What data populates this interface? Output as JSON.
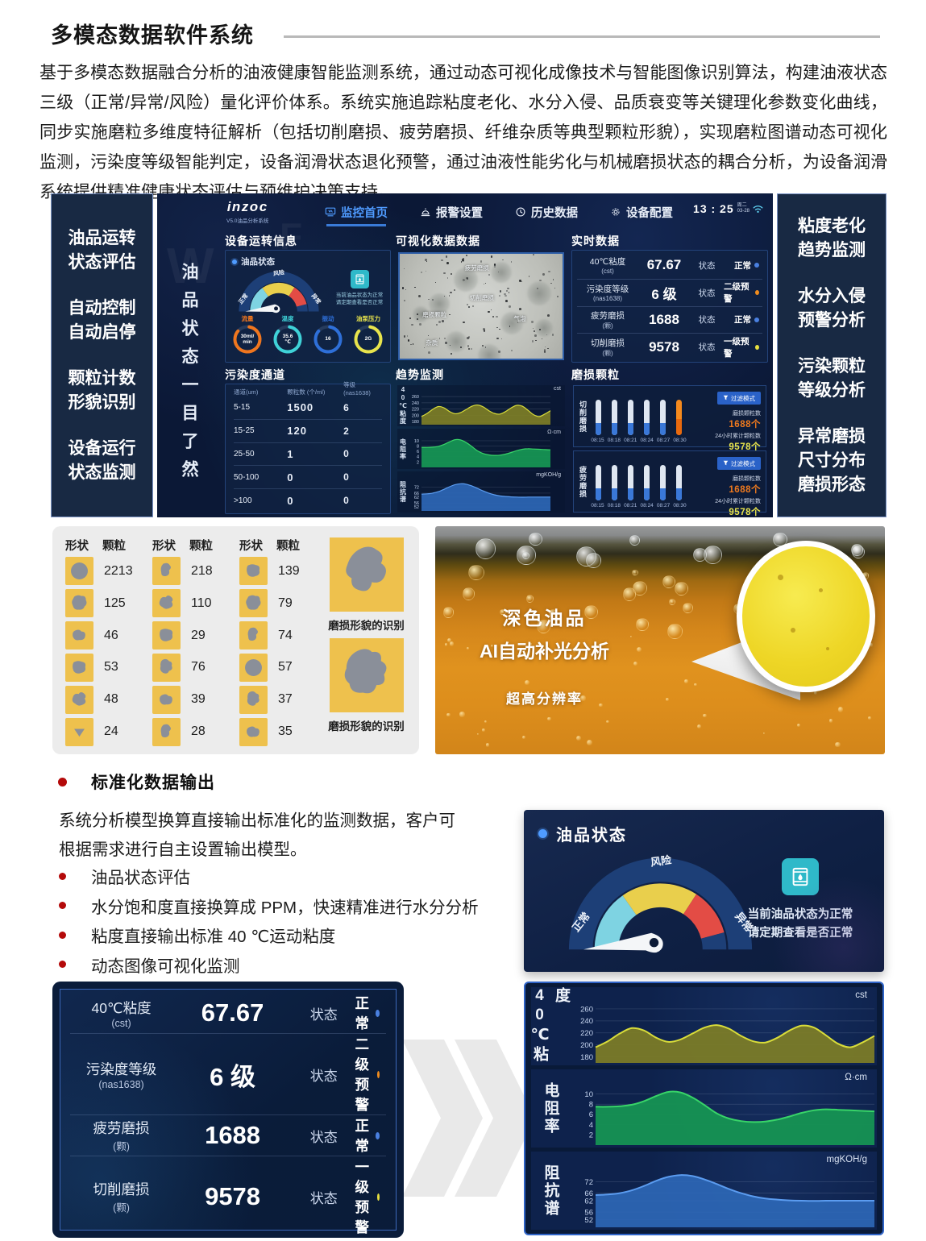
{
  "page": {
    "title": "多模态数据软件系统",
    "intro": "基于多模态数据融合分析的油液健康智能监测系统，通过动态可视化成像技术与智能图像识别算法，构建油液状态三级（正常/异常/风险）量化评价体系。系统实施追踪粘度老化、水分入侵、品质衰变等关键理化参数变化曲线，同步实施磨粒多维度特征解析（包括切削磨损、疲劳磨损、纤维杂质等典型颗粒形貌），实现磨粒图谱动态可视化监测，污染度等级智能判定，设备润滑状态退化预警，通过油液性能劣化与机械磨损状态的耦合分析，为设备润滑系统提供精准健康状态评估与预维护决策支持。"
  },
  "left_sidebar": {
    "items": [
      "油品运转\n状态评估",
      "自动控制\n自动启停",
      "颗粒计数\n形貌识别",
      "设备运行\n状态监测"
    ]
  },
  "right_sidebar": {
    "items": [
      "粘度老化\n趋势监测",
      "水分入侵\n预警分析",
      "污染颗粒\n等级分析",
      "异常磨损\n尺寸分布\n磨损形态"
    ]
  },
  "dashboard": {
    "logo": {
      "name": "inzoc",
      "tagline": "V5.0油品分析系统"
    },
    "watermarks": [
      "W",
      "F"
    ],
    "nav": [
      {
        "label": "监控首页",
        "active": true
      },
      {
        "label": "报警设置",
        "active": false
      },
      {
        "label": "历史数据",
        "active": false
      },
      {
        "label": "设备配置",
        "active": false
      }
    ],
    "clock": {
      "time": "13 : 25",
      "date": "周二\n03-28"
    },
    "vertical_banner": "油品状态一目了然",
    "device_info": {
      "title": "设备运转信息",
      "oil_status_label": "油品状态",
      "rings": [
        {
          "label": "流量",
          "value": "30ml/\nmin",
          "color": "#f0761e"
        },
        {
          "label": "温度",
          "value": "35.6\n℃",
          "color": "#3fd2d8"
        },
        {
          "label": "振动",
          "value": "16",
          "color": "#2e6fd8"
        },
        {
          "label": "油泵压力",
          "value": "2G",
          "color": "#e8e44c"
        }
      ]
    },
    "visual_data": {
      "title": "可视化数据数据",
      "annotations": [
        "疲劳磨损",
        "切削磨损",
        "磨损颗粒",
        "气泡",
        "杂质"
      ]
    },
    "realtime": {
      "title": "实时数据",
      "status_label": "状态",
      "rows": [
        {
          "label": "40℃粘度",
          "sub": "(cst)",
          "value": "67.67",
          "status": "正常",
          "dot": "#4a80e0"
        },
        {
          "label": "污染度等级",
          "sub": "(nas1638)",
          "value": "6 级",
          "status": "二级预警",
          "dot": "#f08c1e"
        },
        {
          "label": "疲劳磨损",
          "sub": "(颗)",
          "value": "1688",
          "status": "正常",
          "dot": "#4a80e0"
        },
        {
          "label": "切削磨损",
          "sub": "(颗)",
          "value": "9578",
          "status": "一级预警",
          "dot": "#e8e040"
        }
      ]
    },
    "pollution": {
      "title": "污染度通道",
      "headers": [
        "通道(um)",
        "颗粒数 (个/ml)",
        "等级(nas1638)"
      ],
      "rows": [
        [
          "5-15",
          "1500",
          "6"
        ],
        [
          "15-25",
          "120",
          "2"
        ],
        [
          "25-50",
          "1",
          "0"
        ],
        [
          "50-100",
          "0",
          "0"
        ],
        [
          ">100",
          "0",
          "0"
        ]
      ]
    },
    "trend": {
      "title": "趋势监测"
    },
    "wear": {
      "title": "磨损颗粒",
      "groups": [
        {
          "label": "切削磨损",
          "times": [
            "08:15",
            "08:18",
            "08:21",
            "08:24",
            "08:27",
            "08:30"
          ],
          "highlight_last": true,
          "mode_btn": "过滤模式",
          "stat1_label": "磨损颗粒数",
          "stat1": "1688个",
          "stat2_label": "24小时累计颗粒数",
          "stat2": "9578个"
        },
        {
          "label": "疲劳磨损",
          "times": [
            "08:15",
            "08:18",
            "08:21",
            "08:24",
            "08:27",
            "08:30"
          ],
          "highlight_last": false,
          "mode_btn": "过滤模式",
          "stat1_label": "磨损颗粒数",
          "stat1": "1688个",
          "stat2_label": "24小时累计颗粒数",
          "stat2": "9578个"
        }
      ]
    }
  },
  "oil_gauge": {
    "normal": "正常",
    "risk": "风险",
    "abnormal": "异常",
    "note": "当前油品状态为正常\n请定期查看是否正常",
    "colors": {
      "normal": "#7ed3e2",
      "risk": "#e9cf4c",
      "abnormal": "#e34c45",
      "arc": "#1d3f77"
    }
  },
  "particles": {
    "col_headers": {
      "shape": "形状",
      "count": "颗粒"
    },
    "columns": [
      [
        "2213",
        "125",
        "46",
        "53",
        "48",
        "24"
      ],
      [
        "218",
        "110",
        "29",
        "76",
        "39",
        "28"
      ],
      [
        "139",
        "79",
        "74",
        "57",
        "37",
        "35"
      ]
    ],
    "recognition_label": "磨损形貌的识别"
  },
  "oil_photo": {
    "line1": "深色油品",
    "line2": "AI自动补光分析",
    "line3": "超高分辨率"
  },
  "std_output": {
    "heading": "标准化数据输出",
    "body": "系统分析模型换算直接输出标准化的监测数据，客户可\n根据需求进行自主设置输出模型。",
    "bullets": [
      "油品状态评估",
      "水分饱和度直接换算成 PPM，快速精准进行水分分析",
      "粘度直接输出标准 40 ℃运动粘度",
      "动态图像可视化监测"
    ]
  },
  "chart_data": [
    {
      "type": "area",
      "name": "40℃粘度",
      "unit": "cst",
      "yticks": [
        260,
        240,
        220,
        200,
        180
      ],
      "ylim": [
        170,
        268
      ],
      "values": [
        196,
        206,
        219,
        228,
        224,
        212,
        205,
        209,
        219,
        229,
        233,
        227,
        215,
        206,
        204,
        212,
        224,
        232,
        229,
        216,
        202,
        196,
        204,
        215
      ],
      "line": "#d8dc3a",
      "fill": "#7e7e26",
      "fill_opacity": 0.92
    },
    {
      "type": "area",
      "name": "电阻率",
      "unit": "Ω·cm",
      "yticks": [
        10,
        8,
        6,
        4,
        2
      ],
      "ylim": [
        0,
        11.5
      ],
      "values": [
        7.5,
        7.5,
        7.6,
        7.9,
        8.6,
        9.6,
        10.4,
        10.3,
        9.3,
        7.8,
        6.2,
        5.2,
        4.7,
        4.5,
        4.6,
        5.0,
        5.6,
        6.3,
        6.8,
        7.0,
        6.9,
        6.8,
        6.7,
        6.6
      ],
      "line": "#38d468",
      "fill": "#169453",
      "fill_opacity": 0.95
    },
    {
      "type": "area",
      "name": "阻抗谱",
      "unit": "mgKOH/g",
      "yticks": [
        72,
        66,
        62,
        56,
        52
      ],
      "ylim": [
        48,
        79
      ],
      "values": [
        65,
        65.3,
        66,
        67.5,
        69.8,
        72.5,
        74.6,
        75.5,
        75,
        73.2,
        70.8,
        68.2,
        66,
        64.3,
        63.2,
        62.6,
        62.2,
        62,
        61.9,
        62,
        62,
        62,
        62,
        62
      ],
      "line": "#5b9cf0",
      "fill": "#2e68b8",
      "fill_opacity": 0.9
    }
  ]
}
